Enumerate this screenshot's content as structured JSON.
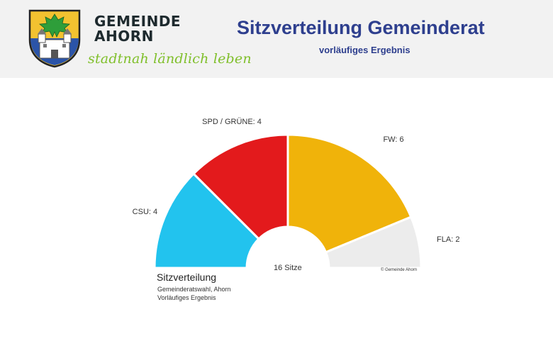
{
  "header": {
    "brand_line1": "GEMEINDE",
    "brand_line2": "AHORN",
    "slogan": "stadtnah ländlich leben",
    "title": "Sitzverteilung Gemeinderat",
    "subtitle": "vorläufiges Ergebnis"
  },
  "colors": {
    "header_bg": "#f2f2f2",
    "title": "#2e3f8e",
    "slogan": "#7fbf2a",
    "csu": "#22c3ee",
    "spd_gruene": "#e31a1c",
    "fw": "#f0b30a",
    "fla": "#ececec"
  },
  "icons": {
    "crest": "municipal-coat-of-arms-icon"
  },
  "chart": {
    "center_label": "16 Sitze",
    "copyright": "© Gemeinde Ahorn",
    "caption_title": "Sitzverteilung",
    "caption_line1": "Gemeinderatswahl, Ahorn",
    "caption_line2": "Vorläufiges Ergebnis"
  },
  "chart_data": {
    "type": "pie",
    "variant": "semicircle-parliament",
    "total_seats": 16,
    "title": "Sitzverteilung",
    "subtitle": "Gemeinderatswahl, Ahorn / Vorläufiges Ergebnis",
    "categories": [
      "CSU",
      "SPD / GRÜNE",
      "FW",
      "FLA"
    ],
    "values": [
      4,
      4,
      6,
      2
    ],
    "labels": [
      "CSU: 4",
      "SPD / GRÜNE: 4",
      "FW: 6",
      "FLA: 2"
    ],
    "colors": [
      "#22c3ee",
      "#e31a1c",
      "#f0b30a",
      "#ececec"
    ]
  }
}
